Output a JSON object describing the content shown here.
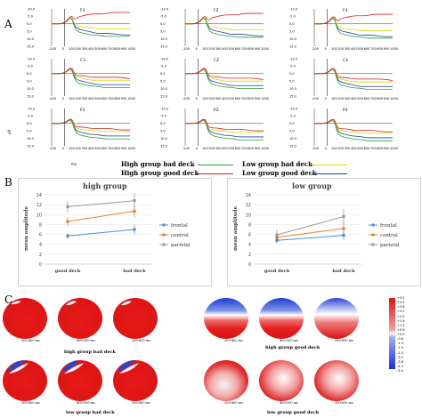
{
  "panels": {
    "a": "A",
    "b": "B",
    "c": "C"
  },
  "panel_a": {
    "electrodes": [
      "F3",
      "FZ",
      "F4",
      "C3",
      "CZ",
      "C4",
      "P3",
      "PZ",
      "P4"
    ],
    "y_ticks": [
      "-10.0",
      "-5.0",
      "0.0",
      "5.0",
      "10.0",
      "15.0"
    ],
    "x_ticks": [
      "-200",
      "0",
      "100",
      "200",
      "300",
      "400",
      "500",
      "600",
      "700",
      "800",
      "900",
      "1000"
    ],
    "y_unit": "uV",
    "x_unit": "ms",
    "colors": {
      "high_bad": "#1f3fa8",
      "high_good": "#2e9b3a",
      "low_bad": "#d8d800",
      "low_good": "#d81f1f"
    }
  },
  "legend": {
    "high_bad": "High group bad deck",
    "low_bad": "Low group bad deck",
    "high_good": "High group good deck",
    "low_good": "Low group good deck"
  },
  "chart_data": [
    {
      "type": "line",
      "title": "high group",
      "ylabel": "mean amplitude",
      "categories": [
        "good deck",
        "bad deck"
      ],
      "ylim": [
        0,
        14
      ],
      "yticks": [
        "0",
        "2",
        "4",
        "6",
        "8",
        "10",
        "12",
        "14"
      ],
      "legend_position": "right",
      "series": [
        {
          "name": "frontal",
          "values": [
            5.7,
            7.0
          ],
          "color": "#4a8fd4"
        },
        {
          "name": "central",
          "values": [
            8.6,
            10.7
          ],
          "color": "#ee7d1f"
        },
        {
          "name": "parietal",
          "values": [
            11.6,
            12.8
          ],
          "color": "#9a9a9a"
        }
      ]
    },
    {
      "type": "line",
      "title": "low group",
      "ylabel": "mean amplitude",
      "categories": [
        "good deck",
        "bad deck"
      ],
      "ylim": [
        0,
        14
      ],
      "yticks": [
        "0",
        "2",
        "4",
        "6",
        "8",
        "10",
        "12",
        "14"
      ],
      "legend_position": "right",
      "series": [
        {
          "name": "frontal",
          "values": [
            4.8,
            5.8
          ],
          "color": "#4a8fd4"
        },
        {
          "name": "central",
          "values": [
            5.4,
            7.2
          ],
          "color": "#ee7d1f"
        },
        {
          "name": "parietal",
          "values": [
            5.9,
            9.6
          ],
          "color": "#9a9a9a"
        }
      ]
    }
  ],
  "panel_c": {
    "captions": {
      "high_bad": "high group bad deck",
      "high_good": "high group good deck",
      "low_bad": "low group bad deck",
      "low_good": "low group good deck"
    },
    "windows": [
      "300-400 ms",
      "400-500 ms",
      "500-600 ms"
    ],
    "colorbar": [
      "+5.0",
      "+4.4",
      "+3.8",
      "+3.2",
      "+2.5",
      "+1.9",
      "+1.3",
      "+0.6",
      "+0.0",
      "-0.6",
      "-1.3",
      "-1.9",
      "-2.5",
      "-3.2",
      "-3.8",
      "-4.4",
      "-5.0"
    ]
  }
}
